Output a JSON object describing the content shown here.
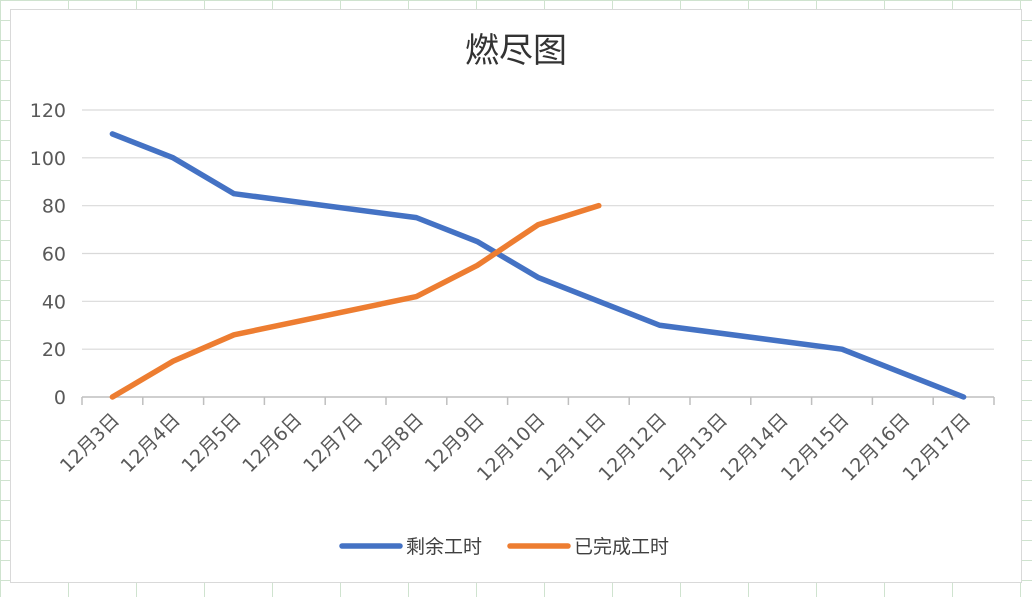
{
  "chart_data": {
    "type": "line",
    "title": "燃尽图",
    "categories": [
      "12月3日",
      "12月4日",
      "12月5日",
      "12月6日",
      "12月7日",
      "12月8日",
      "12月9日",
      "12月10日",
      "12月11日",
      "12月12日",
      "12月13日",
      "12月14日",
      "12月15日",
      "12月16日",
      "12月17日"
    ],
    "ylim": [
      0,
      120
    ],
    "yticks": [
      0,
      20,
      40,
      60,
      80,
      100,
      120
    ],
    "grid": true,
    "legend_position": "bottom",
    "series": [
      {
        "name": "剩余工时",
        "color": "#4472c4",
        "values": [
          110,
          100,
          85,
          null,
          null,
          75,
          65,
          50,
          null,
          30,
          null,
          null,
          20,
          null,
          0
        ]
      },
      {
        "name": "已完成工时",
        "color": "#ed7d31",
        "values": [
          0,
          15,
          26,
          null,
          null,
          42,
          55,
          72,
          80,
          null,
          null,
          null,
          null,
          null,
          null
        ]
      }
    ]
  }
}
